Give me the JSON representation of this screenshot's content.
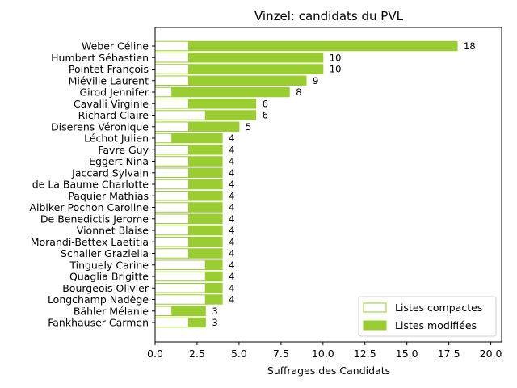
{
  "chart_data": {
    "type": "bar",
    "orientation": "horizontal",
    "stacked": true,
    "title": "Vinzel: candidats du PVL",
    "xlabel": "Suffrages des Candidats",
    "ylabel": "",
    "xlim": [
      0,
      20.5
    ],
    "xticks": [
      "0.0",
      "2.5",
      "5.0",
      "7.5",
      "10.0",
      "12.5",
      "15.0",
      "17.5",
      "20.0"
    ],
    "grid": false,
    "legend_position": "bottom-right",
    "color": "#9acd32",
    "categories": [
      "Weber Céline",
      "Humbert Sébastien",
      "Pointet François",
      "Miéville Laurent",
      "Girod Jennifer",
      "Cavalli Virginie",
      "Richard Claire",
      "Diserens Véronique",
      "Léchot Julien",
      "Favre Guy",
      "Eggert Nina",
      "Jaccard Sylvain",
      "de La Baume Charlotte",
      "Paquier Mathias",
      "Albiker Pochon Caroline",
      "De Benedictis Jerome",
      "Vionnet Blaise",
      "Morandi-Bettex Laetitia",
      "Schaller Graziella",
      "Tinguely Carine",
      "Quaglia Brigitte",
      "Bourgeois Olivier",
      "Longchamp Nadège",
      "Bähler Mélanie",
      "Fankhauser Carmen"
    ],
    "series": [
      {
        "name": "Listes compactes",
        "values": [
          2,
          2,
          2,
          2,
          1,
          2,
          3,
          2,
          1,
          2,
          2,
          2,
          2,
          2,
          2,
          2,
          2,
          2,
          2,
          3,
          3,
          3,
          3,
          1,
          2
        ]
      },
      {
        "name": "Listes modifiées",
        "values": [
          16,
          8,
          8,
          7,
          7,
          4,
          3,
          3,
          3,
          2,
          2,
          2,
          2,
          2,
          2,
          2,
          2,
          2,
          2,
          1,
          1,
          1,
          1,
          2,
          1
        ]
      }
    ],
    "totals": [
      "18",
      "10",
      "10",
      "9",
      "8",
      "6",
      "6",
      "5",
      "4",
      "4",
      "4",
      "4",
      "4",
      "4",
      "4",
      "4",
      "4",
      "4",
      "4",
      "4",
      "4",
      "4",
      "4",
      "3",
      "3"
    ]
  }
}
